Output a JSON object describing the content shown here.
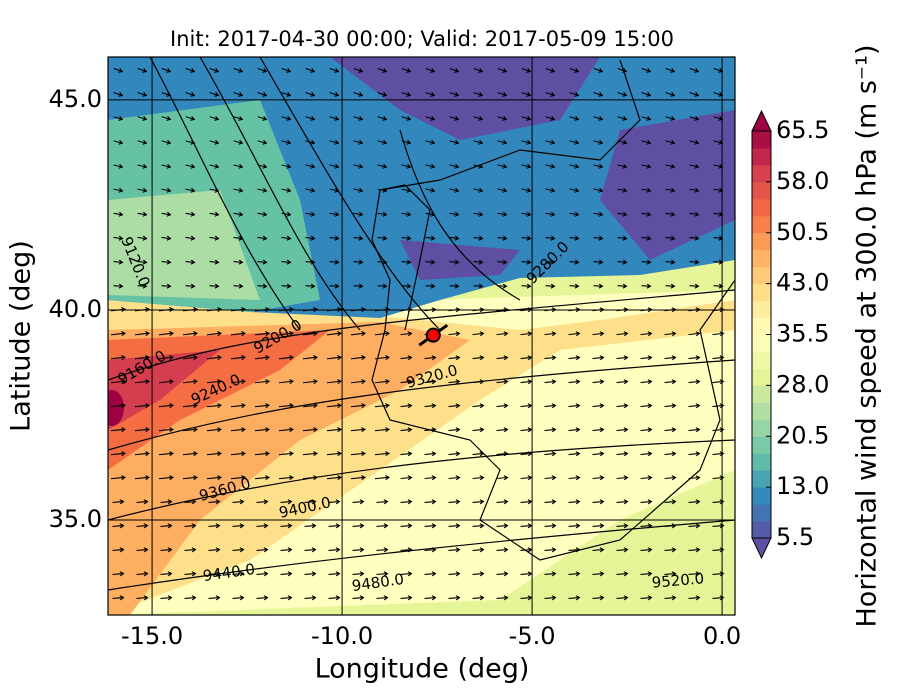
{
  "chart_data": {
    "type": "map",
    "title": "Init: 2017-04-30 00:00; Valid: 2017-05-09 15:00",
    "x_label": "Longitude (deg)",
    "y_label": "Latitude (deg)",
    "xlim": [
      -16.16,
      0.34
    ],
    "ylim": [
      32.74,
      46.02
    ],
    "xticks": [
      {
        "value": -15,
        "label": "-15.0"
      },
      {
        "value": -10,
        "label": "-10.0"
      },
      {
        "value": -5,
        "label": "-5.0"
      },
      {
        "value": 0,
        "label": "0.0"
      }
    ],
    "yticks": [
      {
        "value": 35,
        "label": "35.0"
      },
      {
        "value": 40,
        "label": "40.0"
      },
      {
        "value": 45,
        "label": "45.0"
      }
    ],
    "station": {
      "x": -7.6,
      "y": 39.4,
      "color": "#ff0000"
    },
    "contour_labels": [
      "9120.0",
      "9160.0",
      "9200.0",
      "9240.0",
      "9280.0",
      "9320.0",
      "9360.0",
      "9400.0",
      "9440.0",
      "9480.0",
      "9520.0"
    ],
    "colorbar": {
      "label": "Horizontal wind speed at 300.0 hPa (m s⁻¹)",
      "clim": [
        5.5,
        65.5
      ],
      "ticks": [
        5.5,
        {
          "value": 13,
          "label": "13.0"
        },
        20.5,
        {
          "value": 28,
          "label": "28.0"
        },
        35.5,
        {
          "value": 43,
          "label": "43.0"
        },
        50.5,
        {
          "value": 58,
          "label": "58.0"
        },
        65.5
      ],
      "colormap": [
        "#5e4fa2",
        "#3288bd",
        "#66c2a5",
        "#abdda4",
        "#e6f598",
        "#ffffbf",
        "#fee08b",
        "#fdae61",
        "#f46d43",
        "#d53e4f",
        "#9e0142"
      ]
    }
  }
}
